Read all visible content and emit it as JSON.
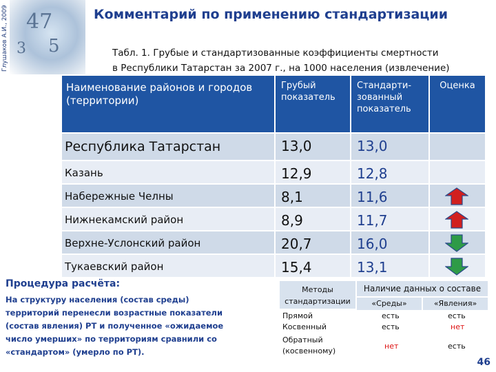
{
  "side_author": "Глушаков А.И., 2009",
  "title": "Комментарий по  применению стандартизации",
  "subtitle_line1": "Табл. 1. Грубые и стандартизованные коэффициенты смертности",
  "subtitle_line2": "в Республики Татарстан за 2007 г., на 1000 населения (извлечение)",
  "table": {
    "headers": [
      "Наименование районов и городов (территории)",
      "Грубый показатель",
      "Стандарти-зованный показатель",
      "Оценка"
    ],
    "rows": [
      {
        "name": "Республика  Татарстан",
        "crude": "13,0",
        "std": "13,0",
        "mark": ""
      },
      {
        "name": "Казань",
        "crude": "12,9",
        "std": "12,8",
        "mark": ""
      },
      {
        "name": "Набережные Челны",
        "crude": "8,1",
        "std": "11,6",
        "mark": "up"
      },
      {
        "name": "Нижнекамский  район",
        "crude": "8,9",
        "std": "11,7",
        "mark": "up"
      },
      {
        "name": "Верхне-Услонский  район",
        "crude": "20,7",
        "std": "16,0",
        "mark": "down"
      },
      {
        "name": "Тукаевский  район",
        "crude": "15,4",
        "std": "13,1",
        "mark": "down"
      }
    ]
  },
  "procedure": {
    "title": "Процедура  расчёта:",
    "text": "На  структуру  населения (состав среды) территорий перенесли возрастные показатели (состав явления) РТ и полученное «ожидаемое число умерших» по территориям сравнили со «стандартом» (умерло по РТ)."
  },
  "methods": {
    "col1_header": "Методы стандартизации",
    "availability_header": "Наличие  данных  о составе",
    "env_header": "«Среды»",
    "phen_header": "«Явления»",
    "rows": [
      {
        "method": "Прямой",
        "env": "есть",
        "phen": "есть"
      },
      {
        "method": "Косвенный",
        "env": "есть",
        "phen": "нет"
      },
      {
        "method": "Обратный (косвенному)",
        "env": "нет",
        "phen": "есть"
      }
    ]
  },
  "page_number": "46",
  "colors": {
    "header_blue": "#1f55a3",
    "row_odd": "#cfdae8",
    "row_even": "#e8edf5",
    "arrow_up": "#d11f1f",
    "arrow_down": "#2e9b47"
  }
}
